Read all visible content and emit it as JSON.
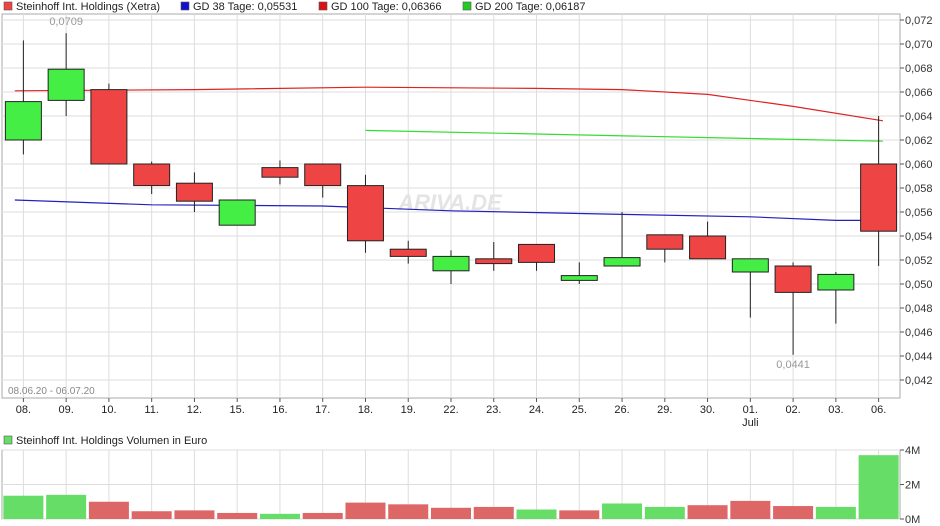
{
  "colors": {
    "up": "#44ee44",
    "down": "#ee4444",
    "gd38": "#2222bb",
    "gd100": "#dd2222",
    "gd200": "#33dd33",
    "grid": "#dddddd",
    "vol_up": "#66dd66",
    "vol_down": "#dd6666"
  },
  "legend": [
    {
      "label": "Steinhoff Int. Holdings (Xetra)",
      "swatch": "#ee4444"
    },
    {
      "label": "GD 38 Tage: 0,05531",
      "swatch": "#1111cc"
    },
    {
      "label": "GD 100 Tage: 0,06366",
      "swatch": "#dd1111"
    },
    {
      "label": "GD 200 Tage: 0,06187",
      "swatch": "#22cc22"
    }
  ],
  "watermark": "ARIVA.DE",
  "chart_data": [
    {
      "type": "candlestick",
      "date_range": "08.06.20 - 06.07.20",
      "categories": [
        "08.",
        "09.",
        "10.",
        "11.",
        "12.",
        "15.",
        "16.",
        "17.",
        "18.",
        "19.",
        "22.",
        "23.",
        "24.",
        "25.",
        "26.",
        "29.",
        "30.",
        "01.",
        "02.",
        "03.",
        "06."
      ],
      "month_label": {
        "index": 17,
        "text": "Juli"
      },
      "ylim": [
        0.0405,
        0.0725
      ],
      "yticks": [
        "0,042",
        "0,044",
        "0,046",
        "0,048",
        "0,050",
        "0,052",
        "0,054",
        "0,056",
        "0,058",
        "0,060",
        "0,062",
        "0,064",
        "0,066",
        "0,068",
        "0,070",
        "0,072"
      ],
      "ytick_values": [
        0.042,
        0.044,
        0.046,
        0.048,
        0.05,
        0.052,
        0.054,
        0.056,
        0.058,
        0.06,
        0.062,
        0.064,
        0.066,
        0.068,
        0.07,
        0.072
      ],
      "candles": [
        {
          "o": 0.062,
          "h": 0.0703,
          "l": 0.0608,
          "c": 0.0652
        },
        {
          "o": 0.0653,
          "h": 0.0709,
          "l": 0.064,
          "c": 0.0679
        },
        {
          "o": 0.0662,
          "h": 0.0667,
          "l": 0.06,
          "c": 0.06
        },
        {
          "o": 0.06,
          "h": 0.0602,
          "l": 0.0575,
          "c": 0.0582
        },
        {
          "o": 0.0584,
          "h": 0.0593,
          "l": 0.056,
          "c": 0.0569
        },
        {
          "o": 0.0549,
          "h": 0.057,
          "l": 0.0549,
          "c": 0.057
        },
        {
          "o": 0.0597,
          "h": 0.0603,
          "l": 0.0583,
          "c": 0.0589
        },
        {
          "o": 0.06,
          "h": 0.06,
          "l": 0.0572,
          "c": 0.0582
        },
        {
          "o": 0.0582,
          "h": 0.0591,
          "l": 0.0526,
          "c": 0.0536
        },
        {
          "o": 0.0529,
          "h": 0.0536,
          "l": 0.0517,
          "c": 0.0523
        },
        {
          "o": 0.0511,
          "h": 0.0528,
          "l": 0.05,
          "c": 0.0523
        },
        {
          "o": 0.0521,
          "h": 0.0535,
          "l": 0.0511,
          "c": 0.0517
        },
        {
          "o": 0.0533,
          "h": 0.0533,
          "l": 0.0511,
          "c": 0.0518
        },
        {
          "o": 0.0503,
          "h": 0.0518,
          "l": 0.05,
          "c": 0.0507
        },
        {
          "o": 0.0515,
          "h": 0.056,
          "l": 0.0515,
          "c": 0.0522
        },
        {
          "o": 0.0541,
          "h": 0.0541,
          "l": 0.0518,
          "c": 0.0529
        },
        {
          "o": 0.054,
          "h": 0.0552,
          "l": 0.0521,
          "c": 0.0521
        },
        {
          "o": 0.051,
          "h": 0.0521,
          "l": 0.0472,
          "c": 0.0521
        },
        {
          "o": 0.0515,
          "h": 0.0518,
          "l": 0.0441,
          "c": 0.0493
        },
        {
          "o": 0.0495,
          "h": 0.051,
          "l": 0.0467,
          "c": 0.0508
        },
        {
          "o": 0.06,
          "h": 0.064,
          "l": 0.0515,
          "c": 0.0544
        }
      ],
      "annotations": [
        {
          "index": 1,
          "text": "0,0709",
          "value": 0.0709,
          "position": "above"
        },
        {
          "index": 18,
          "text": "0,0441",
          "value": 0.0441,
          "position": "below"
        }
      ],
      "moving_averages": [
        {
          "name": "GD 38 Tage",
          "color": "#2222bb",
          "points": [
            [
              -0.2,
              0.057
            ],
            [
              3,
              0.0566
            ],
            [
              7,
              0.0565
            ],
            [
              10,
              0.0561
            ],
            [
              14,
              0.0558
            ],
            [
              17,
              0.0556
            ],
            [
              19,
              0.0553
            ],
            [
              20.1,
              0.0553
            ]
          ]
        },
        {
          "name": "GD 100 Tage",
          "color": "#dd2222",
          "points": [
            [
              -0.2,
              0.0661
            ],
            [
              4,
              0.0662
            ],
            [
              8,
              0.0664
            ],
            [
              12,
              0.0663
            ],
            [
              14,
              0.0662
            ],
            [
              16,
              0.0658
            ],
            [
              18,
              0.0648
            ],
            [
              20.1,
              0.0636
            ]
          ]
        },
        {
          "name": "GD 200 Tage",
          "color": "#33dd33",
          "points": [
            [
              8,
              0.0628
            ],
            [
              12,
              0.0625
            ],
            [
              16,
              0.0622
            ],
            [
              20.1,
              0.0619
            ]
          ]
        }
      ],
      "grid": true
    },
    {
      "type": "bar",
      "title": "Steinhoff Int. Holdings Volumen in Euro",
      "title_swatch": "#66dd66",
      "ylim": [
        0,
        4
      ],
      "yticks": [
        "0M",
        "2M",
        "4M"
      ],
      "ytick_values": [
        0,
        2,
        4
      ],
      "unit": "M Euro",
      "values": [
        1.35,
        1.4,
        1.0,
        0.45,
        0.5,
        0.35,
        0.3,
        0.35,
        0.95,
        0.85,
        0.65,
        0.7,
        0.55,
        0.5,
        0.9,
        0.7,
        0.8,
        1.05,
        0.75,
        0.7,
        3.7
      ],
      "directions": [
        "up",
        "up",
        "down",
        "down",
        "down",
        "down",
        "up",
        "down",
        "down",
        "down",
        "down",
        "down",
        "up",
        "down",
        "up",
        "up",
        "down",
        "down",
        "down",
        "up",
        "up"
      ]
    }
  ]
}
